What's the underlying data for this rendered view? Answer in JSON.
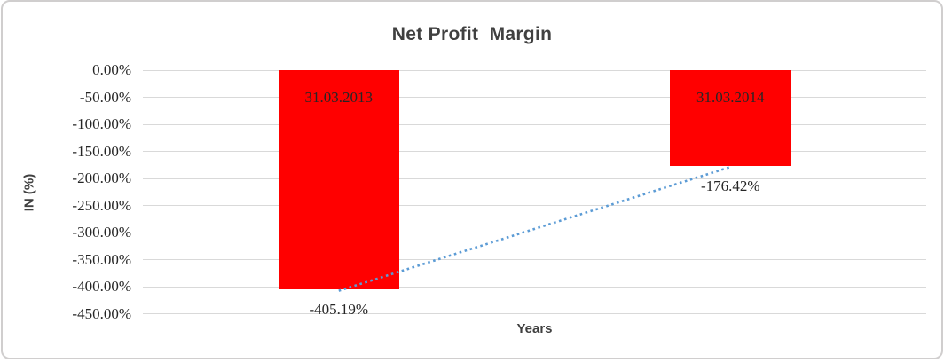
{
  "chart_data": {
    "type": "bar",
    "title": "Net Profit  Margin",
    "xlabel": "Years",
    "ylabel": "IN (%)",
    "categories": [
      "31.03.2013",
      "31.03.2014"
    ],
    "values": [
      -405.19,
      -176.42
    ],
    "data_labels": [
      "-405.19%",
      "-176.42%"
    ],
    "ytick_labels": [
      "0.00%",
      "-50.00%",
      "-100.00%",
      "-150.00%",
      "-200.00%",
      "-250.00%",
      "-300.00%",
      "-350.00%",
      "-400.00%",
      "-450.00%"
    ],
    "ytick_values": [
      0,
      -50,
      -100,
      -150,
      -200,
      -250,
      -300,
      -350,
      -400,
      -450
    ],
    "ylim": [
      -450,
      0
    ],
    "grid": true,
    "legend": "none",
    "trendline": {
      "type": "linear",
      "style": "dotted",
      "connects": [
        -405.19,
        -176.42
      ]
    },
    "colors": {
      "bar": "#FF0000",
      "trendline": "#5B9BD5",
      "gridline": "#D9D9D9",
      "title_text": "#404040",
      "label_text": "#262626",
      "frame_border": "#D0CECE",
      "background": "#FFFFFF"
    }
  }
}
